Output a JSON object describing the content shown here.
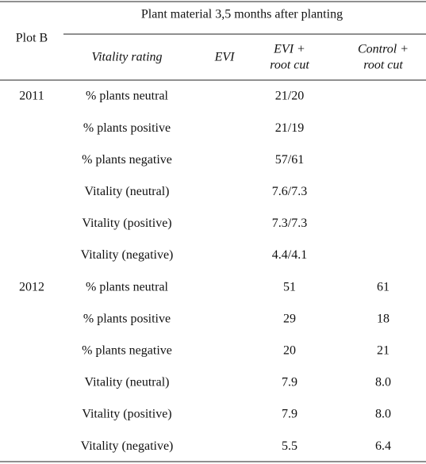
{
  "table": {
    "corner": "Plot B",
    "spanning_header": "Plant material 3,5 months after planting",
    "columns": [
      [
        "Vitality rating"
      ],
      [
        "EVI"
      ],
      [
        "EVI +",
        "root cut"
      ],
      [
        "Control +",
        "root cut"
      ]
    ],
    "groups": [
      {
        "year": "2011",
        "rows": [
          [
            "% plants neutral",
            "21/20"
          ],
          [
            "% plants positive",
            "21/19"
          ],
          [
            "% plants negative",
            "57/61"
          ],
          [
            "Vitality (neutral)",
            "7.6/7.3"
          ],
          [
            "Vitality (positive)",
            "7.3/7.3"
          ],
          [
            "Vitality (negative)",
            "4.4/4.1"
          ]
        ]
      },
      {
        "year": "2012",
        "rows": [
          [
            "% plants neutral",
            "51",
            "61"
          ],
          [
            "% plants positive",
            "29",
            "18"
          ],
          [
            "% plants negative",
            "20",
            "21"
          ],
          [
            "Vitality (neutral)",
            "7.9",
            "8.0"
          ],
          [
            "Vitality (positive)",
            "7.9",
            "8.0"
          ],
          [
            "Vitality (negative)",
            "5.5",
            "6.4"
          ]
        ]
      }
    ]
  }
}
